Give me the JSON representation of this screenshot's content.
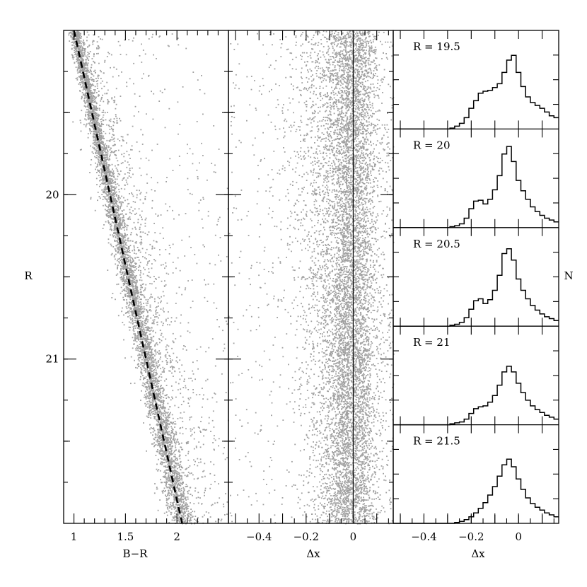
{
  "chart_data": [
    {
      "type": "scatter",
      "panel": "color-magnitude",
      "xlabel": "B−R",
      "ylabel": "R",
      "xlim": [
        0.9,
        2.5
      ],
      "ylim": [
        22.0,
        19.0
      ],
      "y_inverted": true,
      "xticks": [
        "1",
        "1.5",
        "2"
      ],
      "yticks": [
        "20",
        "21"
      ],
      "point_color": "#a0a0a0",
      "ridge_line": {
        "style": "dashed",
        "points": [
          [
            1.0,
            19.0
          ],
          [
            2.05,
            22.0
          ]
        ]
      },
      "series": [
        {
          "values": [
            [
              1.0,
              19.0
            ],
            [
              1.12,
              19.5
            ],
            [
              1.31,
              20.0
            ],
            [
              1.46,
              20.5
            ],
            [
              1.64,
              21.0
            ],
            [
              1.83,
              21.5
            ],
            [
              2.05,
              22.0
            ]
          ]
        }
      ]
    },
    {
      "type": "scatter",
      "panel": "residual",
      "xlabel": "Δx",
      "ylabel": "",
      "xlim": [
        -0.53,
        0.17
      ],
      "ylim": [
        22.0,
        19.0
      ],
      "y_inverted": true,
      "xticks": [
        "−0.4",
        "−0.2",
        "0"
      ],
      "point_color": "#a0a0a0",
      "zero_line": 0,
      "series": [
        {
          "values": [
            [
              -0.1,
              19.0
            ],
            [
              -0.08,
              19.5
            ],
            [
              -0.05,
              20.0
            ],
            [
              -0.03,
              20.5
            ],
            [
              -0.02,
              21.0
            ],
            [
              -0.01,
              21.5
            ],
            [
              0.0,
              22.0
            ]
          ]
        }
      ]
    },
    {
      "type": "bar",
      "panel": "histograms",
      "xlabel": "Δx",
      "ylabel": "N",
      "xlim": [
        -0.53,
        0.17
      ],
      "xticks": [
        "−0.4",
        "−0.2",
        "0"
      ],
      "bin_width": 0.02,
      "bin_start": -0.53,
      "series": [
        {
          "name": "R = 19.5",
          "values": [
            0,
            0,
            0,
            0,
            0,
            0,
            0,
            0,
            0,
            0,
            0,
            0,
            0.01,
            0.03,
            0.06,
            0.12,
            0.22,
            0.3,
            0.38,
            0.4,
            0.41,
            0.44,
            0.48,
            0.6,
            0.73,
            0.78,
            0.6,
            0.45,
            0.34,
            0.28,
            0.25,
            0.22,
            0.18,
            0.14,
            0.12
          ]
        },
        {
          "name": "R = 20",
          "values": [
            0,
            0,
            0,
            0,
            0,
            0,
            0,
            0,
            0,
            0,
            0,
            0,
            0.01,
            0.02,
            0.04,
            0.1,
            0.2,
            0.28,
            0.29,
            0.25,
            0.3,
            0.4,
            0.55,
            0.78,
            0.86,
            0.7,
            0.5,
            0.39,
            0.3,
            0.22,
            0.17,
            0.13,
            0.1,
            0.08,
            0.06
          ]
        },
        {
          "name": "R = 20.5",
          "values": [
            0,
            0,
            0,
            0,
            0,
            0,
            0,
            0,
            0,
            0,
            0,
            0,
            0.01,
            0.02,
            0.04,
            0.09,
            0.18,
            0.27,
            0.29,
            0.24,
            0.28,
            0.38,
            0.54,
            0.77,
            0.82,
            0.7,
            0.5,
            0.38,
            0.29,
            0.22,
            0.17,
            0.13,
            0.1,
            0.08,
            0.06
          ]
        },
        {
          "name": "R = 21",
          "values": [
            0,
            0,
            0,
            0,
            0,
            0,
            0,
            0,
            0,
            0,
            0,
            0,
            0.01,
            0.02,
            0.03,
            0.06,
            0.12,
            0.17,
            0.19,
            0.2,
            0.24,
            0.31,
            0.42,
            0.56,
            0.62,
            0.56,
            0.44,
            0.34,
            0.26,
            0.2,
            0.16,
            0.13,
            0.1,
            0.08,
            0.06
          ]
        },
        {
          "name": "R = 21.5",
          "values": [
            0,
            0,
            0,
            0,
            0,
            0,
            0,
            0,
            0,
            0,
            0,
            0,
            0,
            0.01,
            0.02,
            0.04,
            0.07,
            0.11,
            0.16,
            0.22,
            0.3,
            0.39,
            0.5,
            0.62,
            0.68,
            0.6,
            0.47,
            0.36,
            0.27,
            0.21,
            0.17,
            0.14,
            0.11,
            0.09,
            0.07
          ]
        }
      ]
    }
  ]
}
